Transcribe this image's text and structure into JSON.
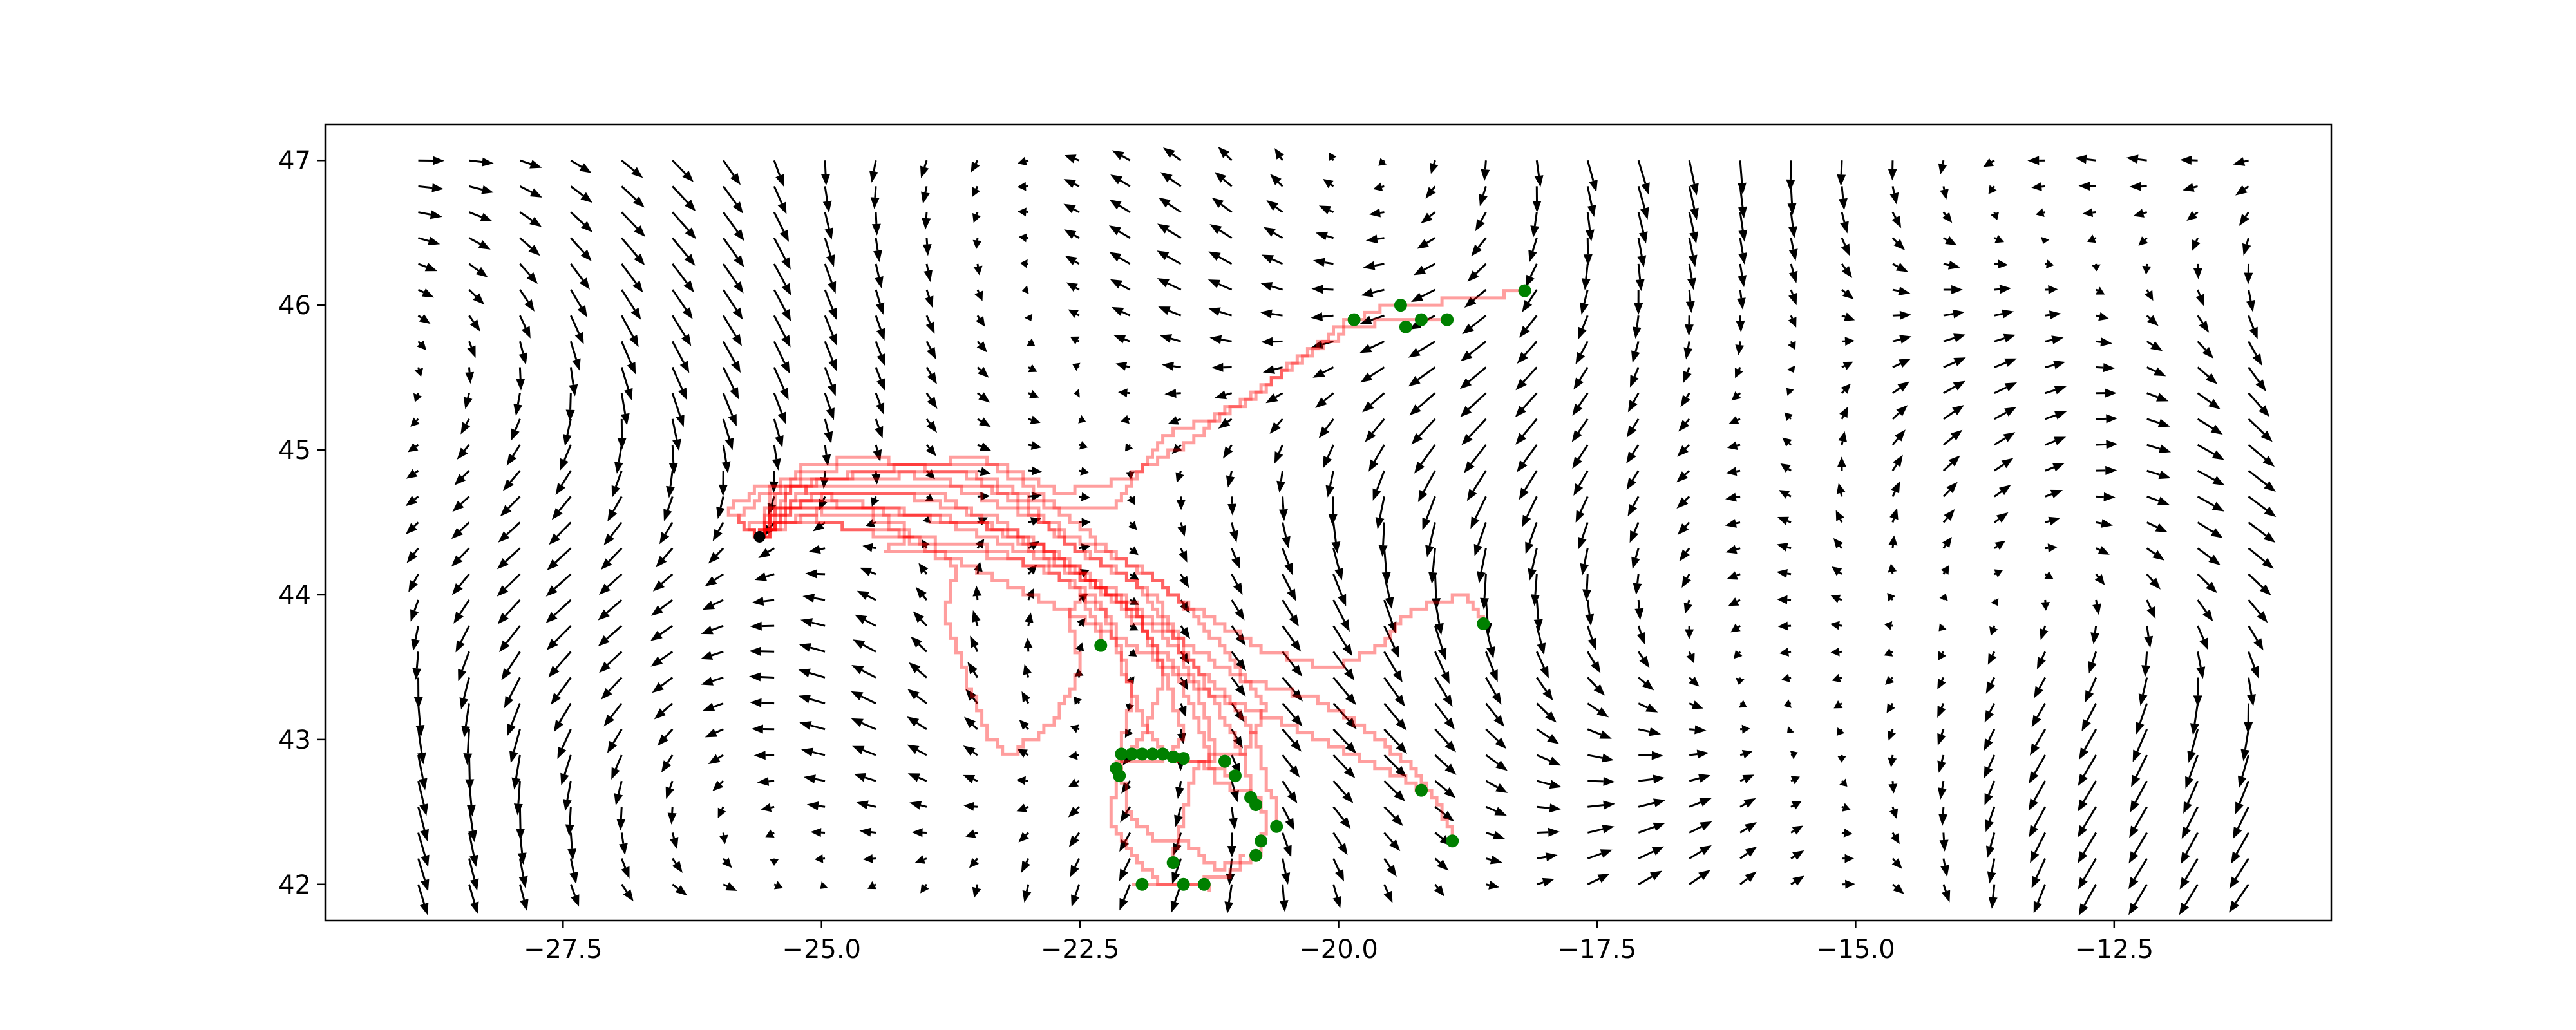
{
  "chart_data": {
    "type": "quiver+trajectories",
    "title": "",
    "xlabel": "",
    "ylabel": "",
    "xlim": [
      -29.8,
      -10.4
    ],
    "ylim": [
      41.75,
      47.25
    ],
    "xticks": [
      -27.5,
      -25.0,
      -22.5,
      -20.0,
      -17.5,
      -15.0,
      -12.5
    ],
    "xtick_labels": [
      "−27.5",
      "−25.0",
      "−22.5",
      "−20.0",
      "−17.5",
      "−15.0",
      "−12.5"
    ],
    "yticks": [
      42,
      43,
      44,
      45,
      46,
      47
    ],
    "ytick_labels": [
      "42",
      "43",
      "44",
      "45",
      "46",
      "47"
    ],
    "grid": false,
    "quiver": {
      "x_range": [
        -28.9,
        -11.2
      ],
      "y_range": [
        42.0,
        47.0
      ],
      "nx": 37,
      "ny": 29,
      "color": "#000000",
      "note": "ocean current vector field"
    },
    "origin": {
      "x": -25.6,
      "y": 44.4,
      "color": "#000000"
    },
    "trajectory_color": "#ff0000",
    "endpoint_color": "#008000",
    "trajectories": [
      [
        [
          -25.6,
          44.4
        ],
        [
          -25.8,
          44.55
        ],
        [
          -25.5,
          44.75
        ],
        [
          -24.9,
          44.8
        ],
        [
          -23.6,
          44.85
        ],
        [
          -23.1,
          44.6
        ],
        [
          -22.5,
          44.3
        ],
        [
          -22.0,
          44.1
        ],
        [
          -21.6,
          43.7
        ],
        [
          -21.3,
          43.2
        ],
        [
          -21.2,
          42.9
        ],
        [
          -21.4,
          42.75
        ],
        [
          -21.6,
          42.15
        ]
      ],
      [
        [
          -25.6,
          44.4
        ],
        [
          -25.9,
          44.6
        ],
        [
          -25.6,
          44.75
        ],
        [
          -24.8,
          44.75
        ],
        [
          -23.8,
          44.75
        ],
        [
          -23.0,
          44.55
        ],
        [
          -22.4,
          44.25
        ],
        [
          -21.8,
          44.0
        ],
        [
          -21.4,
          43.5
        ],
        [
          -21.1,
          43.1
        ],
        [
          -20.9,
          42.85
        ],
        [
          -20.85,
          42.6
        ]
      ],
      [
        [
          -25.6,
          44.4
        ],
        [
          -25.7,
          44.5
        ],
        [
          -24.9,
          44.7
        ],
        [
          -23.9,
          44.7
        ],
        [
          -23.2,
          44.4
        ],
        [
          -22.7,
          44.2
        ],
        [
          -22.0,
          43.9
        ],
        [
          -21.7,
          43.5
        ],
        [
          -21.5,
          43.0
        ],
        [
          -21.7,
          42.85
        ],
        [
          -22.1,
          42.85
        ]
      ],
      [
        [
          -25.6,
          44.4
        ],
        [
          -25.5,
          44.7
        ],
        [
          -24.6,
          44.85
        ],
        [
          -23.5,
          44.95
        ],
        [
          -22.9,
          44.7
        ],
        [
          -22.6,
          44.5
        ],
        [
          -22.2,
          44.3
        ],
        [
          -21.6,
          44.0
        ],
        [
          -21.1,
          43.6
        ],
        [
          -20.7,
          43.2
        ],
        [
          -20.9,
          42.9
        ],
        [
          -21.4,
          42.85
        ],
        [
          -21.8,
          42.9
        ]
      ],
      [
        [
          -25.6,
          44.4
        ],
        [
          -25.3,
          44.75
        ],
        [
          -24.5,
          44.6
        ],
        [
          -24.1,
          44.4
        ],
        [
          -24.4,
          44.3
        ],
        [
          -23.6,
          44.3
        ],
        [
          -22.9,
          44.2
        ],
        [
          -22.3,
          43.95
        ],
        [
          -22.1,
          43.5
        ],
        [
          -21.9,
          43.1
        ],
        [
          -21.7,
          42.9
        ],
        [
          -21.0,
          42.75
        ]
      ],
      [
        [
          -25.6,
          44.4
        ],
        [
          -25.2,
          44.9
        ],
        [
          -24.6,
          44.95
        ],
        [
          -23.4,
          44.8
        ],
        [
          -22.8,
          44.6
        ],
        [
          -22.2,
          44.6
        ],
        [
          -21.7,
          45.1
        ],
        [
          -21.3,
          45.2
        ],
        [
          -20.8,
          45.4
        ],
        [
          -20.3,
          45.7
        ],
        [
          -19.9,
          45.9
        ],
        [
          -19.5,
          46.0
        ],
        [
          -18.6,
          46.05
        ],
        [
          -18.2,
          46.1
        ]
      ],
      [
        [
          -25.6,
          44.4
        ],
        [
          -25.4,
          44.8
        ],
        [
          -24.7,
          44.9
        ],
        [
          -23.3,
          44.9
        ],
        [
          -22.7,
          44.7
        ],
        [
          -22.1,
          44.8
        ],
        [
          -21.6,
          45.0
        ],
        [
          -21.0,
          45.3
        ],
        [
          -20.4,
          45.6
        ],
        [
          -19.9,
          45.85
        ],
        [
          -19.4,
          45.9
        ],
        [
          -19.0,
          45.9
        ]
      ],
      [
        [
          -25.6,
          44.4
        ],
        [
          -25.1,
          44.8
        ],
        [
          -24.3,
          44.85
        ],
        [
          -23.2,
          44.7
        ],
        [
          -22.6,
          44.4
        ],
        [
          -22.0,
          44.2
        ],
        [
          -21.4,
          43.9
        ],
        [
          -20.7,
          43.6
        ],
        [
          -20.1,
          43.5
        ],
        [
          -19.7,
          43.6
        ],
        [
          -19.3,
          43.9
        ],
        [
          -18.8,
          44.0
        ],
        [
          -18.6,
          43.8
        ]
      ],
      [
        [
          -25.6,
          44.4
        ],
        [
          -25.3,
          44.6
        ],
        [
          -24.5,
          44.6
        ],
        [
          -23.5,
          44.5
        ],
        [
          -22.8,
          44.3
        ],
        [
          -22.2,
          44.0
        ],
        [
          -21.6,
          43.7
        ],
        [
          -20.9,
          43.4
        ],
        [
          -20.3,
          43.3
        ],
        [
          -19.8,
          43.1
        ],
        [
          -19.3,
          42.8
        ],
        [
          -19.0,
          42.5
        ],
        [
          -18.9,
          42.3
        ]
      ],
      [
        [
          -25.6,
          44.4
        ],
        [
          -25.4,
          44.5
        ],
        [
          -24.3,
          44.45
        ],
        [
          -23.6,
          44.2
        ],
        [
          -23.0,
          44.0
        ],
        [
          -22.4,
          43.8
        ],
        [
          -21.9,
          43.6
        ],
        [
          -21.2,
          43.3
        ],
        [
          -20.5,
          43.1
        ],
        [
          -19.9,
          42.9
        ],
        [
          -19.3,
          42.7
        ],
        [
          -19.2,
          42.65
        ]
      ],
      [
        [
          -25.6,
          44.4
        ],
        [
          -25.5,
          44.6
        ],
        [
          -24.6,
          44.55
        ],
        [
          -23.7,
          44.2
        ],
        [
          -23.8,
          43.8
        ],
        [
          -23.6,
          43.4
        ],
        [
          -23.4,
          43.0
        ],
        [
          -23.2,
          42.9
        ],
        [
          -22.8,
          43.1
        ],
        [
          -22.5,
          43.5
        ],
        [
          -22.6,
          43.9
        ],
        [
          -22.5,
          44.0
        ],
        [
          -22.3,
          43.65
        ]
      ],
      [
        [
          -25.6,
          44.4
        ],
        [
          -25.2,
          44.55
        ],
        [
          -24.4,
          44.4
        ],
        [
          -23.5,
          44.35
        ],
        [
          -22.8,
          44.15
        ],
        [
          -22.2,
          43.85
        ],
        [
          -22.0,
          43.3
        ],
        [
          -22.1,
          42.9
        ],
        [
          -22.05,
          42.5
        ],
        [
          -21.8,
          42.3
        ],
        [
          -21.5,
          42.3
        ],
        [
          -21.2,
          42.1
        ],
        [
          -20.9,
          42.2
        ]
      ],
      [
        [
          -25.6,
          44.4
        ],
        [
          -25.0,
          44.6
        ],
        [
          -24.1,
          44.55
        ],
        [
          -23.2,
          44.45
        ],
        [
          -22.6,
          44.2
        ],
        [
          -22.0,
          43.95
        ],
        [
          -21.7,
          43.4
        ],
        [
          -21.9,
          43.0
        ],
        [
          -22.15,
          42.8
        ],
        [
          -22.2,
          42.4
        ],
        [
          -21.9,
          42.1
        ],
        [
          -21.7,
          42.0
        ],
        [
          -21.4,
          42.0
        ],
        [
          -21.3,
          42.0
        ],
        [
          -21.25,
          41.95
        ]
      ],
      [
        [
          -25.6,
          44.4
        ],
        [
          -25.1,
          44.7
        ],
        [
          -24.3,
          44.7
        ],
        [
          -23.4,
          44.55
        ],
        [
          -22.7,
          44.25
        ],
        [
          -22.1,
          43.9
        ],
        [
          -21.6,
          43.5
        ],
        [
          -21.3,
          43.0
        ],
        [
          -21.2,
          42.7
        ],
        [
          -20.8,
          42.6
        ],
        [
          -20.7,
          42.45
        ],
        [
          -20.75,
          42.2
        ],
        [
          -21.1,
          42.05
        ],
        [
          -21.5,
          42.0
        ],
        [
          -22.0,
          42.0
        ]
      ],
      [
        [
          -25.6,
          44.4
        ],
        [
          -25.3,
          44.65
        ],
        [
          -24.4,
          44.6
        ],
        [
          -23.6,
          44.45
        ],
        [
          -22.9,
          44.25
        ],
        [
          -22.3,
          44.05
        ],
        [
          -21.7,
          43.7
        ],
        [
          -21.1,
          43.3
        ],
        [
          -20.8,
          43.0
        ],
        [
          -20.7,
          42.7
        ],
        [
          -20.6,
          42.5
        ],
        [
          -20.6,
          42.4
        ]
      ]
    ],
    "endpoints": [
      [
        -18.2,
        46.1
      ],
      [
        -19.4,
        46.0
      ],
      [
        -19.2,
        45.9
      ],
      [
        -18.95,
        45.9
      ],
      [
        -19.85,
        45.9
      ],
      [
        -19.35,
        45.85
      ],
      [
        -18.6,
        43.8
      ],
      [
        -22.3,
        43.65
      ],
      [
        -22.1,
        42.9
      ],
      [
        -22.0,
        42.9
      ],
      [
        -21.9,
        42.9
      ],
      [
        -21.8,
        42.9
      ],
      [
        -21.7,
        42.9
      ],
      [
        -21.6,
        42.88
      ],
      [
        -21.5,
        42.87
      ],
      [
        -22.15,
        42.8
      ],
      [
        -22.12,
        42.75
      ],
      [
        -21.1,
        42.85
      ],
      [
        -21.0,
        42.75
      ],
      [
        -20.85,
        42.6
      ],
      [
        -20.8,
        42.55
      ],
      [
        -20.6,
        42.4
      ],
      [
        -20.75,
        42.3
      ],
      [
        -20.8,
        42.2
      ],
      [
        -19.2,
        42.65
      ],
      [
        -18.9,
        42.3
      ],
      [
        -21.6,
        42.15
      ],
      [
        -21.9,
        42.0
      ],
      [
        -21.5,
        42.0
      ],
      [
        -21.3,
        42.0
      ]
    ]
  }
}
